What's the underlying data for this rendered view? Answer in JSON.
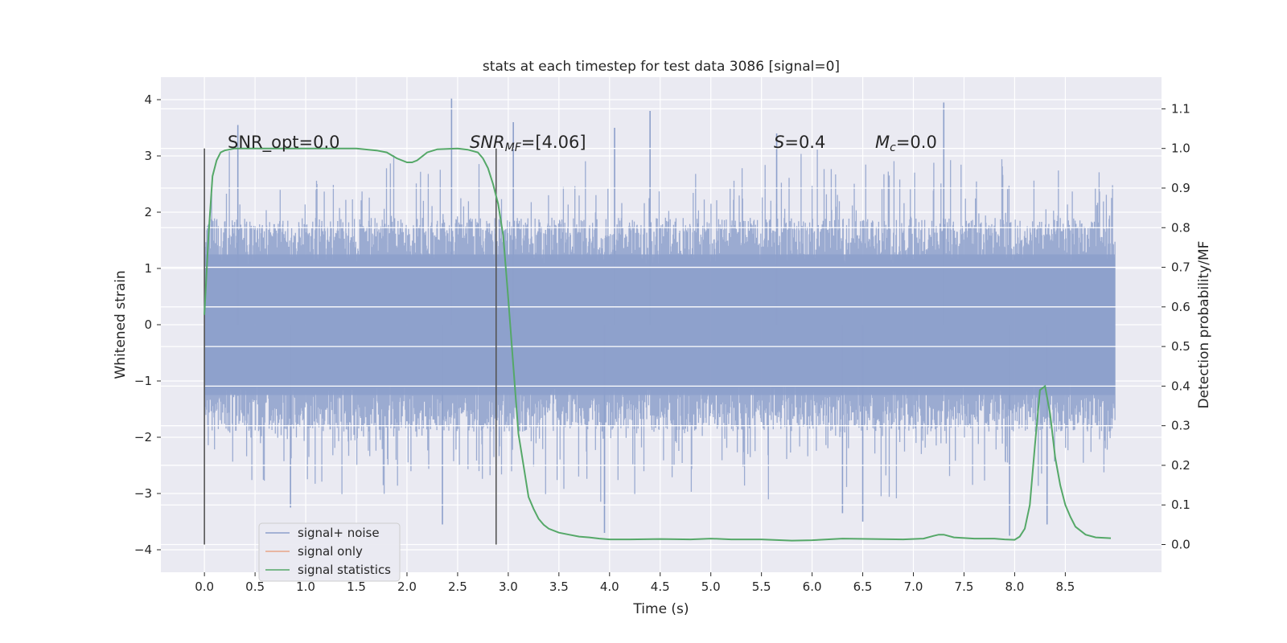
{
  "chart_data": {
    "type": "line",
    "title": "stats at each timestep for test data 3086 [signal=0]",
    "xlabel": "Time (s)",
    "ylabel": "Whitened strain",
    "y2label": "Detection probability/MF",
    "xlim": [
      -0.43,
      9.45
    ],
    "ylim": [
      -4.4,
      4.4
    ],
    "y2lim": [
      -0.07,
      1.18
    ],
    "xticks": [
      "0.0",
      "0.5",
      "1.0",
      "1.5",
      "2.0",
      "2.5",
      "3.0",
      "3.5",
      "4.0",
      "4.5",
      "5.0",
      "5.5",
      "6.0",
      "6.5",
      "7.0",
      "7.5",
      "8.0",
      "8.5"
    ],
    "yticks": [
      "4",
      "3",
      "2",
      "1",
      "0",
      "−1",
      "−2",
      "−3",
      "−4"
    ],
    "y2ticks": [
      "1.1",
      "1.0",
      "0.9",
      "0.8",
      "0.7",
      "0.6",
      "0.5",
      "0.4",
      "0.3",
      "0.2",
      "0.1",
      "0.0"
    ],
    "grid": true,
    "legend_position": "lower-left",
    "annotations": {
      "snr_opt": "SNR_opt=0.0",
      "snr_mf_label": "SNR",
      "snr_mf_sub": "MF",
      "snr_mf_value": "=[4.06]",
      "s_label": "S",
      "s_value": "=0.4",
      "mc_label": "M",
      "mc_sub": "c",
      "mc_value": "=0.0"
    },
    "vertical_markers": [
      0.0,
      2.88
    ],
    "series": [
      {
        "name": "signal+ noise",
        "color": "#8da0cb",
        "noise_range": [
          0.0,
          8.99
        ],
        "typical_amplitude": 1.9,
        "peaks": [
          {
            "x": 2.44,
            "y": 4.02
          },
          {
            "x": 7.3,
            "y": 3.95
          },
          {
            "x": 3.05,
            "y": 3.6
          },
          {
            "x": 0.33,
            "y": 3.55
          },
          {
            "x": 4.4,
            "y": 3.8
          },
          {
            "x": 4.05,
            "y": 3.5
          },
          {
            "x": 5.65,
            "y": 3.4
          },
          {
            "x": 2.35,
            "y": -3.55
          },
          {
            "x": 3.95,
            "y": -3.7
          },
          {
            "x": 7.95,
            "y": -3.75
          },
          {
            "x": 6.5,
            "y": -3.5
          },
          {
            "x": 8.32,
            "y": -3.55
          },
          {
            "x": 0.85,
            "y": -3.25
          },
          {
            "x": 6.3,
            "y": -3.35
          }
        ]
      },
      {
        "name": "signal only",
        "color": "#e8a487",
        "values": []
      },
      {
        "name": "signal statistics",
        "color": "#55a868",
        "x": [
          0.0,
          0.04,
          0.08,
          0.12,
          0.16,
          0.2,
          0.3,
          0.5,
          1.0,
          1.5,
          1.7,
          1.8,
          1.9,
          2.0,
          2.05,
          2.1,
          2.2,
          2.3,
          2.5,
          2.6,
          2.7,
          2.75,
          2.8,
          2.85,
          2.9,
          2.95,
          3.0,
          3.05,
          3.1,
          3.15,
          3.2,
          3.25,
          3.3,
          3.35,
          3.4,
          3.5,
          3.6,
          3.7,
          3.8,
          3.9,
          4.0,
          4.2,
          4.5,
          4.8,
          5.0,
          5.2,
          5.5,
          5.8,
          6.0,
          6.3,
          6.6,
          6.9,
          7.1,
          7.2,
          7.25,
          7.3,
          7.4,
          7.6,
          7.8,
          7.9,
          8.0,
          8.05,
          8.1,
          8.15,
          8.2,
          8.25,
          8.3,
          8.35,
          8.4,
          8.45,
          8.5,
          8.55,
          8.6,
          8.7,
          8.8,
          8.95
        ],
        "values": [
          0.58,
          0.78,
          0.93,
          0.97,
          0.99,
          0.995,
          1.0,
          1.0,
          1.0,
          1.0,
          0.995,
          0.99,
          0.975,
          0.965,
          0.965,
          0.97,
          0.99,
          0.998,
          1.0,
          0.997,
          0.99,
          0.975,
          0.95,
          0.91,
          0.86,
          0.78,
          0.62,
          0.45,
          0.28,
          0.2,
          0.12,
          0.09,
          0.065,
          0.05,
          0.04,
          0.03,
          0.025,
          0.02,
          0.018,
          0.015,
          0.013,
          0.013,
          0.014,
          0.013,
          0.015,
          0.013,
          0.013,
          0.01,
          0.011,
          0.015,
          0.014,
          0.013,
          0.015,
          0.022,
          0.025,
          0.025,
          0.018,
          0.015,
          0.015,
          0.013,
          0.012,
          0.02,
          0.04,
          0.1,
          0.25,
          0.39,
          0.4,
          0.33,
          0.22,
          0.15,
          0.1,
          0.07,
          0.045,
          0.025,
          0.018,
          0.016
        ]
      }
    ]
  }
}
